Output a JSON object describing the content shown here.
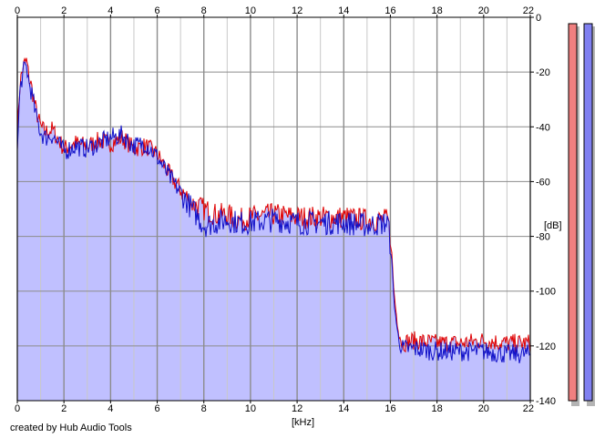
{
  "credit": "created by Hub Audio Tools",
  "colors": {
    "left_channel": "#e00000",
    "right_channel": "#1010c8",
    "fill": "#c0c0ff",
    "grid_minor": "#c8c8c8",
    "grid_major": "#8c8c8c",
    "meter_left": "#f08080",
    "meter_right": "#8080f0"
  },
  "chart_data": {
    "type": "area",
    "title": "",
    "xlabel": "[kHz]",
    "ylabel": "[dB]",
    "xlim": [
      0,
      22
    ],
    "ylim": [
      -140,
      0
    ],
    "x_ticks": [
      "0",
      "2",
      "4",
      "6",
      "8",
      "10",
      "12",
      "14",
      "16",
      "18",
      "20",
      "22"
    ],
    "y_ticks": [
      "0",
      "-20",
      "-40",
      "-60",
      "-80",
      "-100",
      "-120",
      "-140"
    ],
    "grid": true,
    "legend": "none",
    "series": [
      {
        "channel": "left",
        "x": [
          0,
          0.1,
          0.2,
          0.3,
          0.4,
          0.5,
          0.6,
          0.8,
          1.0,
          1.2,
          1.5,
          2.0,
          2.5,
          3.0,
          3.5,
          4.0,
          4.5,
          5.0,
          5.5,
          6.0,
          6.5,
          7.0,
          7.5,
          8.0,
          8.5,
          9.0,
          9.5,
          10.0,
          11.0,
          12.0,
          13.0,
          14.0,
          15.0,
          15.9,
          16.05,
          16.15,
          16.3,
          16.5,
          17.0,
          18.0,
          19.0,
          20.0,
          21.0,
          22.0
        ],
        "values": [
          -45,
          -25,
          -20,
          -17,
          -16,
          -22,
          -25,
          -34,
          -40,
          -42,
          -41,
          -48,
          -46,
          -47,
          -45,
          -46,
          -44,
          -48,
          -47,
          -50,
          -57,
          -63,
          -68,
          -70,
          -72,
          -72,
          -74,
          -73,
          -72,
          -73,
          -73,
          -73,
          -74,
          -74,
          -85,
          -100,
          -112,
          -119,
          -118,
          -119,
          -119,
          -118,
          -119,
          -119
        ]
      },
      {
        "channel": "right",
        "x": [
          0,
          0.1,
          0.2,
          0.3,
          0.4,
          0.5,
          0.6,
          0.8,
          1.0,
          1.2,
          1.5,
          2.0,
          2.5,
          3.0,
          3.5,
          4.0,
          4.5,
          5.0,
          5.5,
          6.0,
          6.5,
          7.0,
          7.5,
          8.0,
          8.5,
          9.0,
          9.5,
          10.0,
          11.0,
          12.0,
          13.0,
          14.0,
          15.0,
          15.9,
          16.05,
          16.15,
          16.3,
          16.5,
          17.0,
          18.0,
          19.0,
          20.0,
          21.0,
          22.0
        ],
        "values": [
          -50,
          -28,
          -22,
          -19,
          -18,
          -24,
          -27,
          -36,
          -42,
          -44,
          -43,
          -49,
          -47,
          -48,
          -46,
          -44,
          -43,
          -47,
          -46,
          -51,
          -58,
          -64,
          -70,
          -76,
          -75,
          -74,
          -75,
          -75,
          -74,
          -75,
          -75,
          -75,
          -76,
          -75,
          -88,
          -103,
          -115,
          -121,
          -121,
          -122,
          -122,
          -122,
          -123,
          -123
        ]
      }
    ],
    "level_meters": [
      {
        "channel": "left",
        "level": 1.0
      },
      {
        "channel": "right",
        "level": 1.0
      }
    ]
  }
}
